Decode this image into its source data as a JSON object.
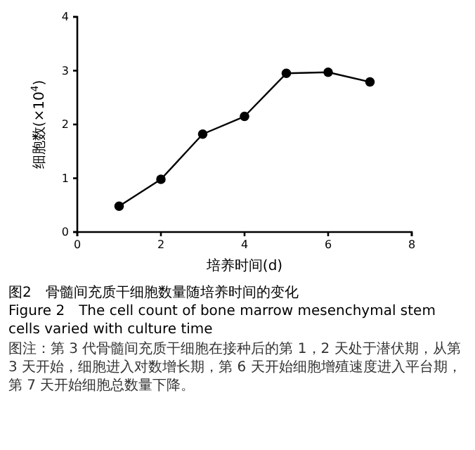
{
  "chart_data": {
    "type": "line",
    "title": "图2　骨髓间充质干细胞数量随培养时间的变化",
    "subtitle": "Figure 2　The cell count of bone marrow mesenchymal stem cells varied with culture time",
    "xlabel": "培养时间(d)",
    "ylabel": "细胞数(×10$^{4}$)",
    "x": [
      1,
      2,
      3,
      4,
      5,
      6,
      7
    ],
    "series": [
      {
        "color": "#000000",
        "values": [
          0.48,
          0.98,
          1.82,
          2.15,
          2.95,
          2.97,
          2.79
        ]
      }
    ],
    "xlim": [
      0,
      8
    ],
    "xticks": [
      0,
      2,
      4,
      6,
      8
    ],
    "ylim": [
      0,
      4
    ],
    "yticks": [
      0,
      1,
      2,
      3,
      4
    ],
    "marker": "circle",
    "line_style": "solid",
    "grid": false,
    "annotations": [
      "图注：第 3 代骨髓间充质干细胞在接种后的第 1，2 天处于潜伏期，从第 3 天开始，细胞进入对数增长期，第 6 天开始细胞增殖速度进入平台期，第 7 天开始细胞总数量下降。"
    ]
  }
}
